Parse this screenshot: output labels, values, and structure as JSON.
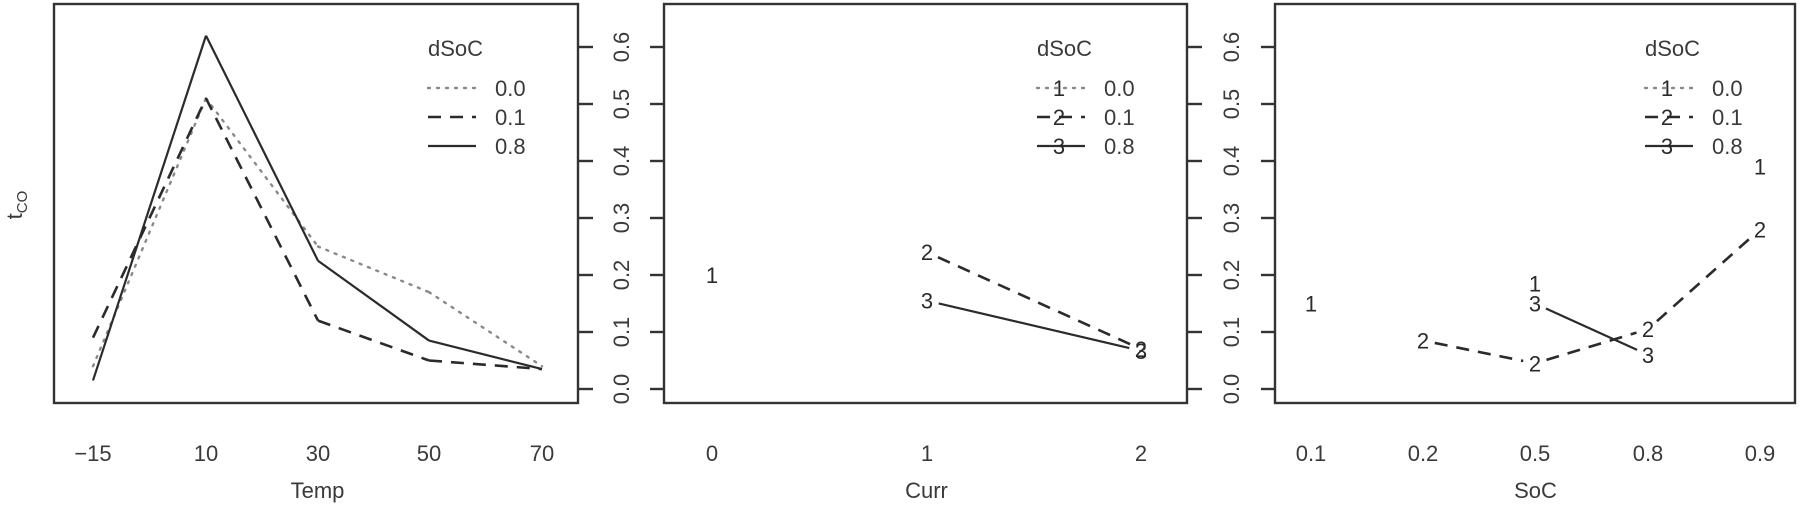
{
  "figure": {
    "y_axis_label": "t",
    "y_axis_label_sub": "CO",
    "y_axis_ticks": [
      "0.0",
      "0.1",
      "0.2",
      "0.3",
      "0.4",
      "0.5",
      "0.6"
    ],
    "legend_title": "dSoC",
    "legend_entries": [
      {
        "value": "0.0",
        "style": "dotted",
        "marker": "1"
      },
      {
        "value": "0.1",
        "style": "dashed",
        "marker": "2"
      },
      {
        "value": "0.8",
        "style": "solid",
        "marker": "3"
      }
    ]
  },
  "chart_data": [
    {
      "type": "line",
      "title": "",
      "xlabel": "Temp",
      "ylabel": "tCO",
      "ylim": [
        0,
        0.6
      ],
      "categories": [
        "-15",
        "10",
        "30",
        "50",
        "70"
      ],
      "legend_title": "dSoC",
      "legend_position": "top-right",
      "show_markers": false,
      "series": [
        {
          "name": "0.0",
          "line": "dotted",
          "values": [
            0.04,
            0.51,
            0.25,
            0.17,
            0.04
          ]
        },
        {
          "name": "0.1",
          "line": "dashed",
          "values": [
            0.09,
            0.51,
            0.12,
            0.05,
            0.035
          ]
        },
        {
          "name": "0.8",
          "line": "solid",
          "values": [
            0.015,
            0.62,
            0.225,
            0.085,
            0.035
          ]
        }
      ]
    },
    {
      "type": "line",
      "title": "",
      "xlabel": "Curr",
      "ylabel": "tCO",
      "ylim": [
        0,
        0.6
      ],
      "categories": [
        "0",
        "1",
        "2"
      ],
      "legend_title": "dSoC",
      "legend_position": "top-right",
      "show_markers": true,
      "series": [
        {
          "name": "0.0",
          "line": "dotted",
          "marker": "1",
          "values": [
            0.2,
            null,
            null
          ]
        },
        {
          "name": "0.1",
          "line": "dashed",
          "marker": "2",
          "values": [
            null,
            0.24,
            0.07
          ]
        },
        {
          "name": "0.8",
          "line": "solid",
          "marker": "3",
          "values": [
            null,
            0.155,
            0.067
          ]
        }
      ]
    },
    {
      "type": "line",
      "title": "",
      "xlabel": "SoC",
      "ylabel": "tCO",
      "ylim": [
        0,
        0.6
      ],
      "categories": [
        "0.1",
        "0.2",
        "0.5",
        "0.8",
        "0.9"
      ],
      "legend_title": "dSoC",
      "legend_position": "top-right",
      "show_markers": true,
      "series": [
        {
          "name": "0.0",
          "line": "dotted",
          "marker": "1",
          "values": [
            0.15,
            null,
            0.185,
            null,
            0.39
          ]
        },
        {
          "name": "0.1",
          "line": "dashed",
          "marker": "2",
          "values": [
            null,
            0.085,
            0.045,
            0.105,
            0.28
          ]
        },
        {
          "name": "0.8",
          "line": "solid",
          "marker": "3",
          "values": [
            null,
            null,
            0.15,
            0.06,
            null
          ]
        }
      ]
    }
  ]
}
